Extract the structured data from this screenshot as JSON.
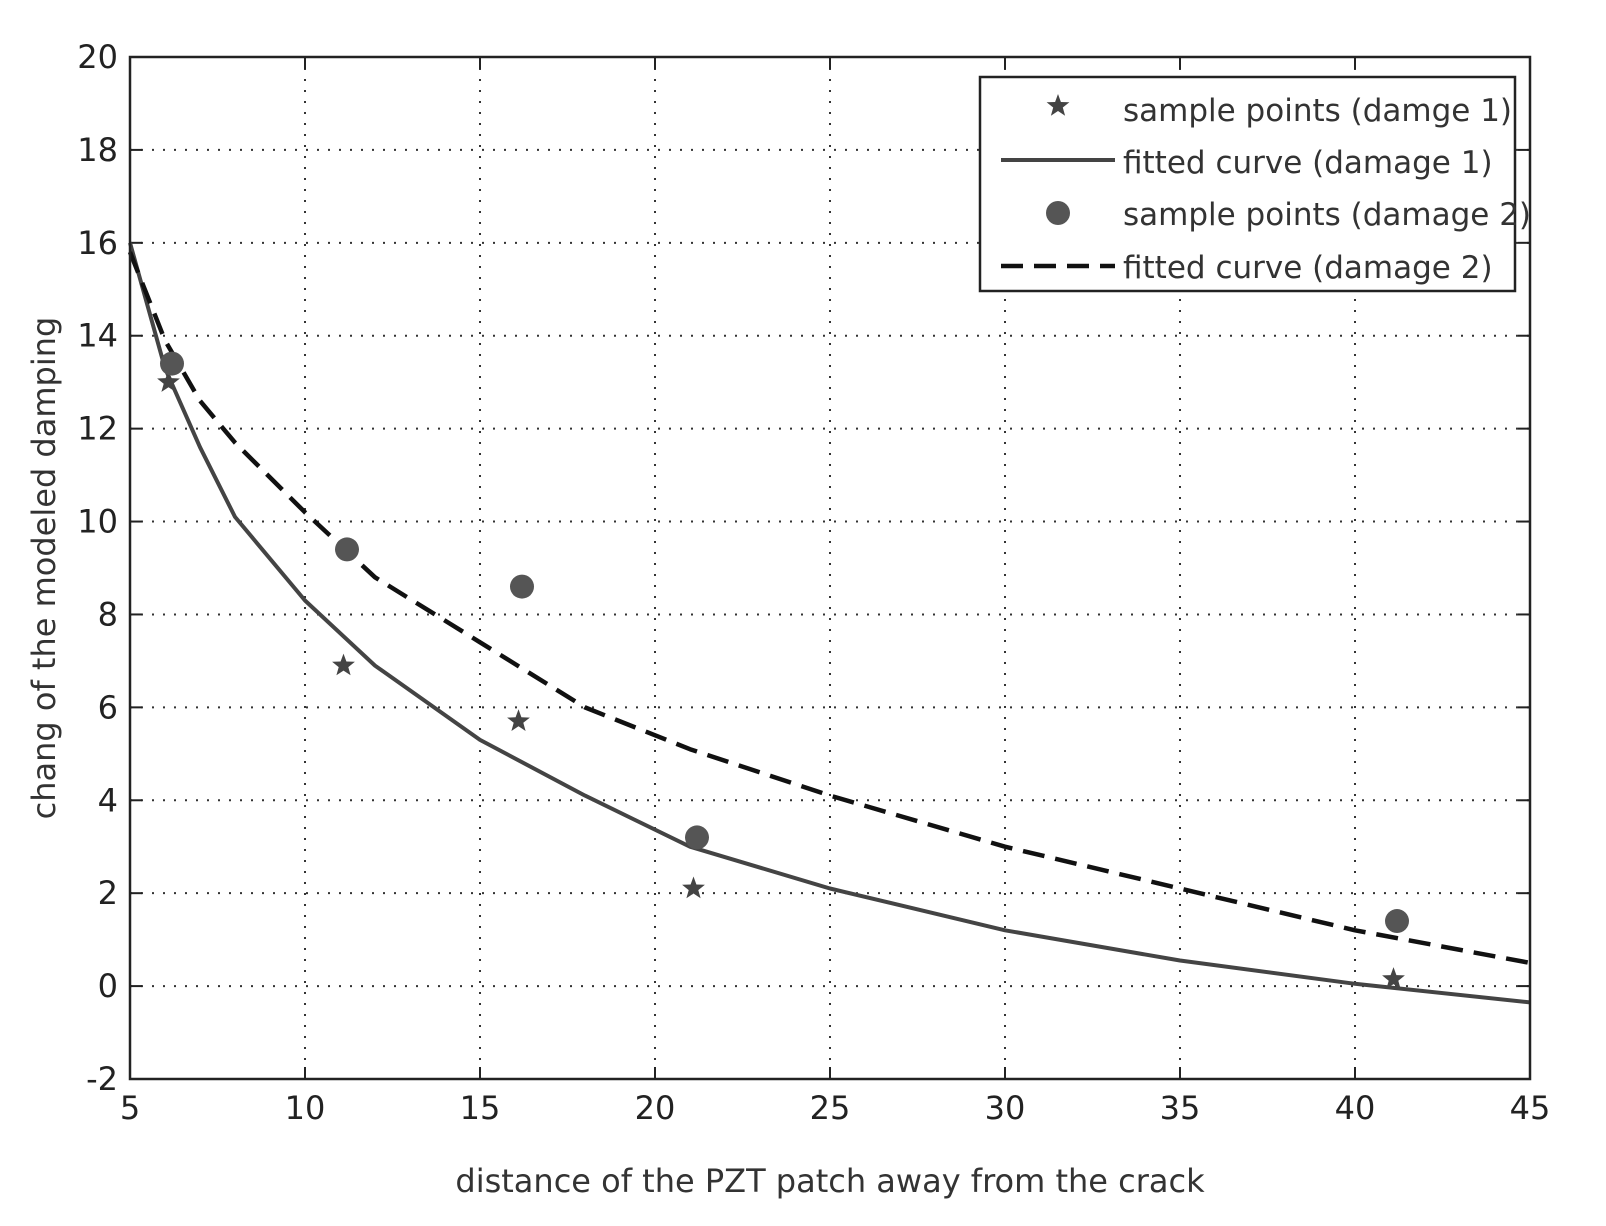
{
  "chart_data": {
    "type": "scatter",
    "title": "",
    "xlabel": "distance of the PZT patch away from the crack",
    "ylabel": "chang of the modeled damping",
    "xlim": [
      5,
      45
    ],
    "ylim": [
      -2,
      20
    ],
    "xticks": [
      5,
      10,
      15,
      20,
      25,
      30,
      35,
      40,
      45
    ],
    "yticks": [
      -2,
      0,
      2,
      4,
      6,
      8,
      10,
      12,
      14,
      16,
      18,
      20
    ],
    "grid": true,
    "legend_position": "top-right",
    "series": [
      {
        "name": "sample points (damge 1)",
        "kind": "scatter",
        "marker": "star",
        "points": [
          [
            6.1,
            13.0
          ],
          [
            11.1,
            6.9
          ],
          [
            16.1,
            5.7
          ],
          [
            21.1,
            2.1
          ],
          [
            41.1,
            0.15
          ]
        ]
      },
      {
        "name": "fitted curve (damage 1)",
        "kind": "line",
        "style": "solid",
        "points": [
          [
            5,
            16.0
          ],
          [
            6,
            13.3
          ],
          [
            7,
            11.6
          ],
          [
            8,
            10.1
          ],
          [
            10,
            8.3
          ],
          [
            12,
            6.9
          ],
          [
            15,
            5.3
          ],
          [
            18,
            4.1
          ],
          [
            21,
            3.0
          ],
          [
            25,
            2.1
          ],
          [
            30,
            1.2
          ],
          [
            35,
            0.55
          ],
          [
            40,
            0.05
          ],
          [
            45,
            -0.35
          ]
        ]
      },
      {
        "name": "sample points (damage 2)",
        "kind": "scatter",
        "marker": "circle",
        "points": [
          [
            6.2,
            13.4
          ],
          [
            11.2,
            9.4
          ],
          [
            16.2,
            8.6
          ],
          [
            21.2,
            3.2
          ],
          [
            41.2,
            1.4
          ]
        ]
      },
      {
        "name": "fitted curve (damage 2)",
        "kind": "line",
        "style": "dashed",
        "points": [
          [
            5,
            15.8
          ],
          [
            6,
            13.9
          ],
          [
            7,
            12.6
          ],
          [
            8,
            11.7
          ],
          [
            10,
            10.2
          ],
          [
            12,
            8.8
          ],
          [
            15,
            7.4
          ],
          [
            18,
            6.0
          ],
          [
            21,
            5.1
          ],
          [
            25,
            4.1
          ],
          [
            30,
            3.0
          ],
          [
            35,
            2.1
          ],
          [
            40,
            1.2
          ],
          [
            45,
            0.5
          ]
        ]
      }
    ]
  }
}
